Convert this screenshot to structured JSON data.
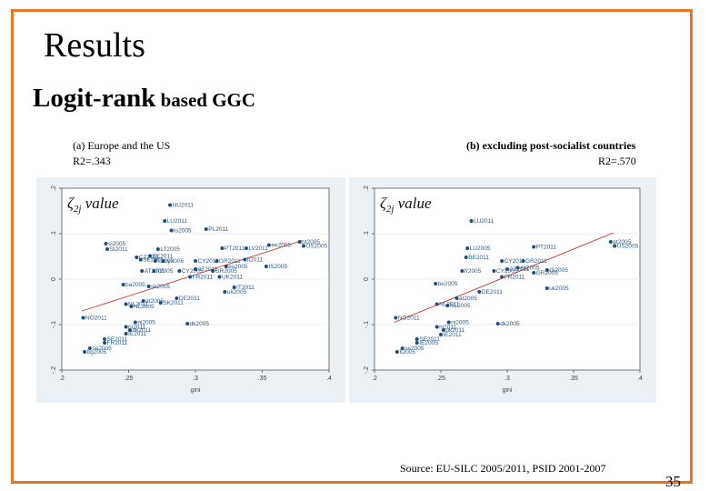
{
  "slide": {
    "title": "Results",
    "subtitle_main": "Logit-rank",
    "subtitle_rest": " based GGC",
    "source": "Source: EU-SILC 2005/2011, PSID 2001-2007",
    "page_number": "35",
    "border_color": "#e8741f"
  },
  "charts_meta": [
    {
      "caption": "(a)  Europe and the US",
      "r2": "R2=.343"
    },
    {
      "caption": "(b) excluding post-socialist countries",
      "r2": "R2=.570"
    }
  ],
  "chart_data": [
    {
      "type": "scatter",
      "title": "(a) Europe and the US",
      "annotation": "ζ2j value",
      "xlabel": "gini",
      "ylabel": "",
      "xlim": [
        0.2,
        0.4
      ],
      "ylim": [
        -0.2,
        0.2
      ],
      "xticks": [
        ".2",
        ".25",
        ".3",
        ".35",
        ".4"
      ],
      "yticks": [
        "-.2",
        "-.1",
        "0",
        ".1",
        ".2"
      ],
      "fit": {
        "x": [
          0.215,
          0.38
        ],
        "y": [
          -0.07,
          0.085
        ]
      },
      "points": [
        {
          "x": 0.281,
          "y": 0.163,
          "label": "HU2011"
        },
        {
          "x": 0.277,
          "y": 0.128,
          "label": "LU2011"
        },
        {
          "x": 0.282,
          "y": 0.107,
          "label": "lu2005"
        },
        {
          "x": 0.308,
          "y": 0.11,
          "label": "PL2011"
        },
        {
          "x": 0.233,
          "y": 0.078,
          "label": "si2005"
        },
        {
          "x": 0.234,
          "y": 0.066,
          "label": "SI2011"
        },
        {
          "x": 0.272,
          "y": 0.066,
          "label": "LT2005"
        },
        {
          "x": 0.32,
          "y": 0.068,
          "label": "PT2011"
        },
        {
          "x": 0.338,
          "y": 0.068,
          "label": "LV2011"
        },
        {
          "x": 0.378,
          "y": 0.082,
          "label": "pt2005"
        },
        {
          "x": 0.355,
          "y": 0.075,
          "label": "ee2005"
        },
        {
          "x": 0.381,
          "y": 0.073,
          "label": "US2005"
        },
        {
          "x": 0.256,
          "y": 0.048,
          "label": "CZ2011"
        },
        {
          "x": 0.266,
          "y": 0.051,
          "label": "BE2011"
        },
        {
          "x": 0.259,
          "y": 0.043,
          "label": "SE2005"
        },
        {
          "x": 0.27,
          "y": 0.04,
          "label": "fi2005"
        },
        {
          "x": 0.276,
          "y": 0.04,
          "label": "ry2006"
        },
        {
          "x": 0.3,
          "y": 0.04,
          "label": "CY2011"
        },
        {
          "x": 0.316,
          "y": 0.04,
          "label": "GR2011"
        },
        {
          "x": 0.337,
          "y": 0.043,
          "label": "lt2011"
        },
        {
          "x": 0.26,
          "y": 0.018,
          "label": "AT2005"
        },
        {
          "x": 0.269,
          "y": 0.018,
          "label": "fr2005"
        },
        {
          "x": 0.288,
          "y": 0.018,
          "label": "CY2005"
        },
        {
          "x": 0.3,
          "y": 0.022,
          "label": "AT2011"
        },
        {
          "x": 0.313,
          "y": 0.018,
          "label": "GR2005"
        },
        {
          "x": 0.323,
          "y": 0.028,
          "label": "es2005"
        },
        {
          "x": 0.353,
          "y": 0.028,
          "label": "IS2005"
        },
        {
          "x": 0.296,
          "y": 0.005,
          "label": "FR2011"
        },
        {
          "x": 0.318,
          "y": 0.005,
          "label": "UK2011"
        },
        {
          "x": 0.246,
          "y": -0.012,
          "label": "ba2005"
        },
        {
          "x": 0.265,
          "y": -0.016,
          "label": "sk2005"
        },
        {
          "x": 0.329,
          "y": -0.018,
          "label": "IT2011"
        },
        {
          "x": 0.322,
          "y": -0.028,
          "label": "uk2005"
        },
        {
          "x": 0.286,
          "y": -0.042,
          "label": "DE2011"
        },
        {
          "x": 0.261,
          "y": -0.048,
          "label": "at2005"
        },
        {
          "x": 0.274,
          "y": -0.052,
          "label": "SK2011"
        },
        {
          "x": 0.248,
          "y": -0.055,
          "label": "NL2011"
        },
        {
          "x": 0.252,
          "y": -0.06,
          "label": "NL2005"
        },
        {
          "x": 0.216,
          "y": -0.085,
          "label": "NO2011"
        },
        {
          "x": 0.255,
          "y": -0.095,
          "label": "ni2005"
        },
        {
          "x": 0.294,
          "y": -0.098,
          "label": "dk2005"
        },
        {
          "x": 0.248,
          "y": -0.105,
          "label": "ni2011"
        },
        {
          "x": 0.251,
          "y": -0.112,
          "label": "dk2011"
        },
        {
          "x": 0.248,
          "y": -0.12,
          "label": "IE2011"
        },
        {
          "x": 0.232,
          "y": -0.132,
          "label": "SE2011"
        },
        {
          "x": 0.232,
          "y": -0.14,
          "label": "FR2011"
        },
        {
          "x": 0.221,
          "y": -0.152,
          "label": "se2005"
        },
        {
          "x": 0.217,
          "y": -0.16,
          "label": "bg2005"
        }
      ]
    },
    {
      "type": "scatter",
      "title": "(b) excluding post-socialist countries",
      "annotation": "ζ2j value",
      "xlabel": "gini",
      "ylabel": "",
      "xlim": [
        0.2,
        0.4
      ],
      "ylim": [
        -0.2,
        0.2
      ],
      "xticks": [
        ".2",
        ".25",
        ".3",
        ".35",
        ".4"
      ],
      "yticks": [
        "-.2",
        "-.1",
        "0",
        ".1",
        ".2"
      ],
      "fit": {
        "x": [
          0.215,
          0.38
        ],
        "y": [
          -0.095,
          0.102
        ]
      },
      "points": [
        {
          "x": 0.273,
          "y": 0.128,
          "label": "LU2011"
        },
        {
          "x": 0.27,
          "y": 0.068,
          "label": "LU2005"
        },
        {
          "x": 0.32,
          "y": 0.071,
          "label": "PT2011"
        },
        {
          "x": 0.378,
          "y": 0.082,
          "label": "pt2005"
        },
        {
          "x": 0.381,
          "y": 0.073,
          "label": "US2005"
        },
        {
          "x": 0.269,
          "y": 0.048,
          "label": "BE2011"
        },
        {
          "x": 0.296,
          "y": 0.04,
          "label": "CY2011"
        },
        {
          "x": 0.312,
          "y": 0.04,
          "label": "GR2011"
        },
        {
          "x": 0.266,
          "y": 0.018,
          "label": "fr2005"
        },
        {
          "x": 0.29,
          "y": 0.018,
          "label": "CY2005"
        },
        {
          "x": 0.3,
          "y": 0.022,
          "label": "AT2011"
        },
        {
          "x": 0.308,
          "y": 0.025,
          "label": "es2005"
        },
        {
          "x": 0.32,
          "y": 0.014,
          "label": "GR2005"
        },
        {
          "x": 0.296,
          "y": 0.005,
          "label": "FR2011"
        },
        {
          "x": 0.33,
          "y": 0.02,
          "label": "IS2005"
        },
        {
          "x": 0.246,
          "y": -0.01,
          "label": "be2005"
        },
        {
          "x": 0.33,
          "y": -0.02,
          "label": "uk2005"
        },
        {
          "x": 0.279,
          "y": -0.028,
          "label": "DE2011"
        },
        {
          "x": 0.262,
          "y": -0.042,
          "label": "at2005"
        },
        {
          "x": 0.247,
          "y": -0.055,
          "label": "NL2011"
        },
        {
          "x": 0.255,
          "y": -0.058,
          "label": "NL2005"
        },
        {
          "x": 0.216,
          "y": -0.085,
          "label": "NO2011"
        },
        {
          "x": 0.256,
          "y": -0.095,
          "label": "ni2005"
        },
        {
          "x": 0.293,
          "y": -0.098,
          "label": "dk2005"
        },
        {
          "x": 0.247,
          "y": -0.105,
          "label": "ni2011"
        },
        {
          "x": 0.252,
          "y": -0.112,
          "label": "dk2011"
        },
        {
          "x": 0.25,
          "y": -0.122,
          "label": "IE2011"
        },
        {
          "x": 0.232,
          "y": -0.132,
          "label": "SE2011"
        },
        {
          "x": 0.232,
          "y": -0.14,
          "label": "IE2005"
        },
        {
          "x": 0.221,
          "y": -0.152,
          "label": "se2005"
        },
        {
          "x": 0.217,
          "y": -0.16,
          "label": "fi2005"
        }
      ]
    }
  ]
}
